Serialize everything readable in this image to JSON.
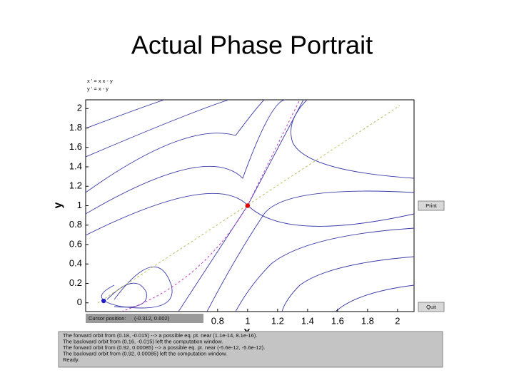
{
  "slide_title": "Actual Phase Portrait",
  "window": {
    "equations": [
      "x ' = x x - y",
      "y ' = x - y"
    ],
    "buttons": [
      "Print",
      "Quit"
    ],
    "cursor_label": "Cursor position:",
    "cursor_value": "(-0.312, 0.602)",
    "messages": [
      "The forward orbit from (0.18, -0.015) --> a possible eq. pt. near (1.1e-14, 8.1e-16).",
      "The backward orbit from (0.16, -0.015) left the computation window.",
      "The forward orbit from (0.92, 0.00085) --> a possible eq. pt. near (-5.6e-12, -5.6e-12).",
      "The backward orbit from (0.92, 0.00085) left the computation window.",
      "Ready."
    ]
  },
  "chart_data": {
    "type": "phase-portrait",
    "x_label": "x",
    "y_label": "y",
    "xlim": [
      -0.08,
      2.11
    ],
    "ylim": [
      -0.09,
      2.09
    ],
    "xticks": [
      0.8,
      1,
      1.2,
      1.4,
      1.6,
      1.8,
      2
    ],
    "yticks": [
      0,
      0.2,
      0.4,
      0.6,
      0.8,
      1,
      1.2,
      1.4,
      1.6,
      1.8,
      2
    ],
    "equilibria": {
      "x": [
        1,
        0.04
      ],
      "y": [
        1,
        0.02
      ],
      "colors": [
        "#e00000",
        "#2020c0"
      ]
    }
  }
}
